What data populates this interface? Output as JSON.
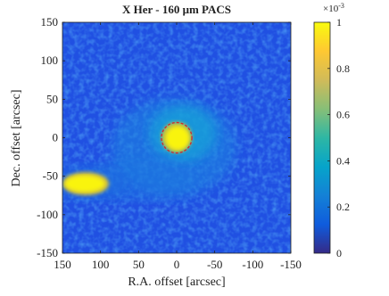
{
  "chart_data": {
    "type": "heatmap",
    "title": "X Her - 160 μm PACS",
    "xlabel": "R.A. offset [arcsec]",
    "ylabel": "Dec. offset [arcsec]",
    "xlim": [
      150,
      -150
    ],
    "xticks": [
      150,
      100,
      50,
      0,
      -50,
      -100,
      -150
    ],
    "ylim": [
      -150,
      150
    ],
    "yticks": [
      -150,
      -100,
      -50,
      0,
      50,
      100,
      150
    ],
    "colorbar": {
      "lim": [
        0,
        1
      ],
      "ticks": [
        0,
        0.2,
        0.4,
        0.6,
        0.8,
        1
      ],
      "multiplier": "×10",
      "exponent": "-3",
      "colors": [
        "#352a87",
        "#0f5cdd",
        "#1481d6",
        "#06a4ca",
        "#2eb7a4",
        "#87bf77",
        "#d1bb59",
        "#fec832",
        "#f9fb0e"
      ]
    },
    "circle": {
      "x": 0,
      "y": 0,
      "r": 20,
      "color": "#d62728"
    }
  }
}
